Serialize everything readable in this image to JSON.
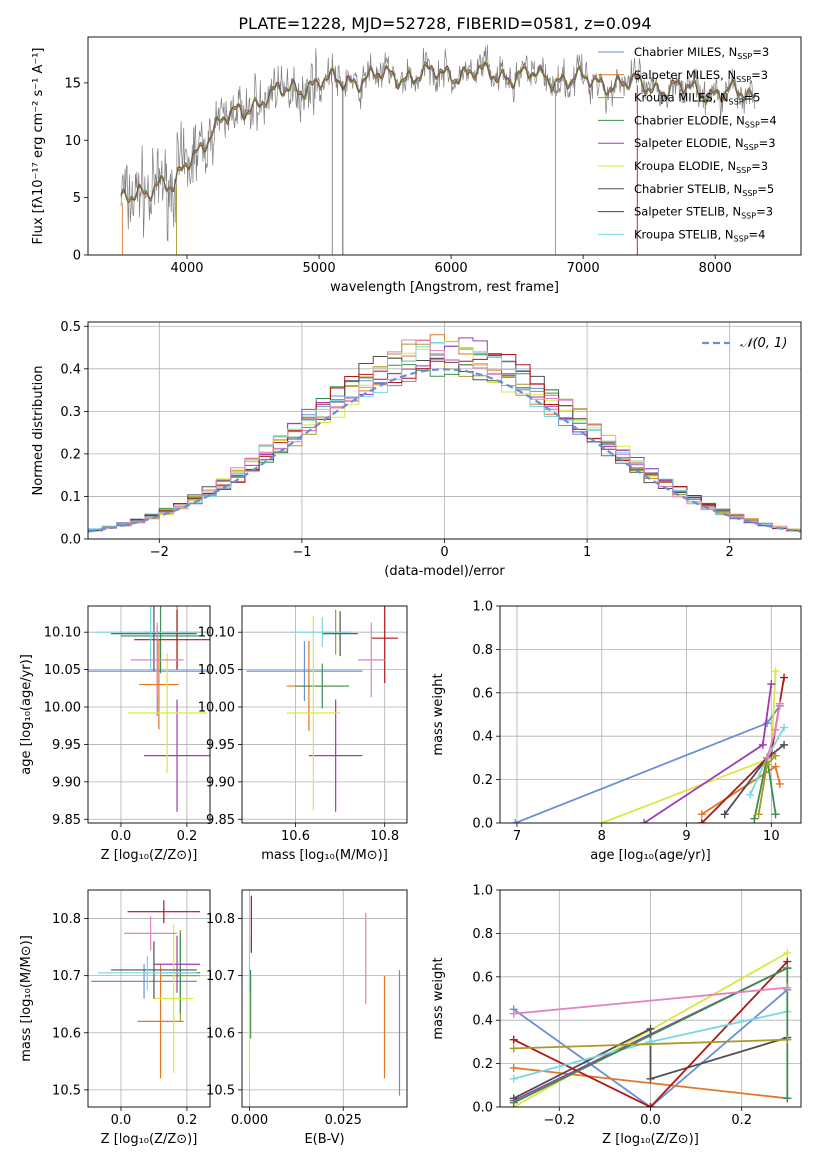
{
  "figure_title": "PLATE=1228, MJD=52728, FIBERID=0581, z=0.094",
  "colors": {
    "obs": "#7f7f7f",
    "Chabrier MILES": "#6a8fd6",
    "Salpeter MILES": "#e27727",
    "Kroupa MILES": "#a89a25",
    "Chabrier ELODIE": "#3b8e4f",
    "Salpeter ELODIE": "#a23ab4",
    "Kroupa ELODIE": "#d9e83f",
    "Chabrier STELIB": "#4f4f4f",
    "Salpeter STELIB": "#b01818",
    "Kroupa STELIB": "#78d8e2",
    "Pink": "#e282bf",
    "grid": "#b0b0b0"
  },
  "chart_data": [
    {
      "id": "spectrum",
      "type": "line",
      "title": "PLATE=1228, MJD=52728, FIBERID=0581, z=0.094",
      "xlabel": "wavelength [Angstrom, rest frame]",
      "ylabel": "Flux [fλ10⁻¹⁷ erg cm⁻² s⁻¹ A⁻¹]",
      "xlim": [
        3250,
        8650
      ],
      "ylim": [
        0,
        19
      ],
      "xticks": [
        4000,
        5000,
        6000,
        7000,
        8000
      ],
      "yticks": [
        0,
        5,
        10,
        15
      ],
      "grid": false,
      "legend_position": "right",
      "legend": [
        {
          "name": "Chabrier MILES, N_SSP=3",
          "label": "Chabrier MILES, N",
          "sub": "SSP",
          "n": "=3",
          "color_key": "Chabrier MILES"
        },
        {
          "name": "Salpeter MILES, N_SSP=3",
          "label": "Salpeter MILES, N",
          "sub": "SSP",
          "n": "=3",
          "color_key": "Salpeter MILES"
        },
        {
          "name": "Kroupa MILES, N_SSP=5",
          "label": "Kroupa MILES, N",
          "sub": "SSP",
          "n": "=5",
          "color_key": "Kroupa MILES"
        },
        {
          "name": "Chabrier ELODIE, N_SSP=4",
          "label": "Chabrier ELODIE, N",
          "sub": "SSP",
          "n": "=4",
          "color_key": "Chabrier ELODIE"
        },
        {
          "name": "Salpeter ELODIE, N_SSP=3",
          "label": "Salpeter ELODIE, N",
          "sub": "SSP",
          "n": "=3",
          "color_key": "Salpeter ELODIE"
        },
        {
          "name": "Kroupa ELODIE, N_SSP=3",
          "label": "Kroupa ELODIE, N",
          "sub": "SSP",
          "n": "=3",
          "color_key": "Kroupa ELODIE"
        },
        {
          "name": "Chabrier STELIB, N_SSP=5",
          "label": "Chabrier STELIB, N",
          "sub": "SSP",
          "n": "=5",
          "color_key": "Chabrier STELIB"
        },
        {
          "name": "Salpeter STELIB, N_SSP=3",
          "label": "Salpeter STELIB, N",
          "sub": "SSP",
          "n": "=3",
          "color_key": "Salpeter STELIB"
        },
        {
          "name": "Kroupa STELIB, N_SSP=4",
          "label": "Kroupa STELIB, N",
          "sub": "SSP",
          "n": "=4",
          "color_key": "Kroupa STELIB"
        }
      ],
      "continuum": [
        [
          3500,
          4.5
        ],
        [
          3600,
          5.0
        ],
        [
          3700,
          5.8
        ],
        [
          3800,
          6.5
        ],
        [
          3900,
          5.6
        ],
        [
          4000,
          8.0
        ],
        [
          4100,
          9.5
        ],
        [
          4200,
          11.0
        ],
        [
          4300,
          11.8
        ],
        [
          4400,
          12.5
        ],
        [
          4500,
          13.2
        ],
        [
          4600,
          13.7
        ],
        [
          4700,
          14.1
        ],
        [
          4800,
          14.5
        ],
        [
          4900,
          14.8
        ],
        [
          5000,
          15.0
        ],
        [
          5200,
          15.2
        ],
        [
          5400,
          15.5
        ],
        [
          5600,
          15.6
        ],
        [
          5800,
          15.7
        ],
        [
          6000,
          15.9
        ],
        [
          6200,
          15.8
        ],
        [
          6400,
          15.7
        ],
        [
          6600,
          15.6
        ],
        [
          6800,
          15.4
        ],
        [
          7000,
          15.2
        ],
        [
          7200,
          15.0
        ],
        [
          7400,
          14.8
        ],
        [
          7600,
          14.6
        ],
        [
          7800,
          14.4
        ],
        [
          8000,
          14.2
        ],
        [
          8200,
          14.0
        ],
        [
          8300,
          13.9
        ]
      ],
      "spikes": [
        [
          5100,
          0,
          "obs"
        ],
        [
          5180,
          0,
          "Chabrier STELIB"
        ],
        [
          6790,
          0,
          "Kroupa MILES"
        ],
        [
          7410,
          0,
          "Salpeter STELIB"
        ],
        [
          3510,
          0,
          "Salpeter MILES"
        ],
        [
          3920,
          0,
          "Kroupa MILES"
        ]
      ]
    },
    {
      "id": "residuals",
      "type": "line",
      "xlabel": "(data-model)/error",
      "ylabel": "Normed distribution",
      "xlim": [
        -2.5,
        2.5
      ],
      "ylim": [
        0,
        0.51
      ],
      "xticks": [
        -2,
        -1,
        0,
        1,
        2
      ],
      "yticks": [
        0.0,
        0.1,
        0.2,
        0.3,
        0.4,
        0.5
      ],
      "grid": true,
      "legend_position": "top-right",
      "reference_curve": "𝒩(0, 1)",
      "bin_width": 0.1
    },
    {
      "id": "age_vs_Z",
      "type": "scatter",
      "xlabel": "Z [log₁₀(Z/Z⊙)]",
      "ylabel": "age  [log₁₀(age/yr)]",
      "xlim": [
        -0.1,
        0.27
      ],
      "ylim": [
        9.845,
        10.135
      ],
      "xticks": [
        0.0,
        0.2
      ],
      "yticks": [
        9.85,
        9.9,
        9.95,
        10.0,
        10.05,
        10.1
      ],
      "grid": true,
      "points": [
        {
          "k": "Chabrier MILES",
          "x": 0.11,
          "xe": 0.23,
          "y": 10.048,
          "ye": 0.06
        },
        {
          "k": "Salpeter MILES",
          "x": 0.115,
          "xe": 0.06,
          "y": 10.03,
          "ye": 0.06
        },
        {
          "k": "Kroupa MILES",
          "x": 0.17,
          "xe": 0.1,
          "y": 10.1,
          "ye": 0.05
        },
        {
          "k": "Chabrier ELODIE",
          "x": 0.12,
          "xe": 0.12,
          "y": 10.095,
          "ye": 0.05
        },
        {
          "k": "Salpeter ELODIE",
          "x": 0.17,
          "xe": 0.1,
          "y": 9.935,
          "ye": 0.075
        },
        {
          "k": "Kroupa ELODIE",
          "x": 0.14,
          "xe": 0.12,
          "y": 9.992,
          "ye": 0.08
        },
        {
          "k": "Chabrier STELIB",
          "x": 0.1,
          "xe": 0.13,
          "y": 10.098,
          "ye": 0.05
        },
        {
          "k": "Salpeter STELIB",
          "x": 0.17,
          "xe": 0.13,
          "y": 10.09,
          "ye": 0.04
        },
        {
          "k": "Kroupa STELIB",
          "x": 0.09,
          "xe": 0.17,
          "y": 10.1,
          "ye": 0.05
        },
        {
          "k": "Pink",
          "x": 0.11,
          "xe": 0.08,
          "y": 10.063,
          "ye": 0.05
        }
      ]
    },
    {
      "id": "age_vs_mass",
      "type": "scatter",
      "xlabel": "mass [log₁₀(M/M⊙)]",
      "ylabel": "",
      "xlim": [
        10.48,
        10.85
      ],
      "ylim": [
        9.845,
        10.135
      ],
      "xticks": [
        10.6,
        10.8
      ],
      "yticks": [
        9.85,
        9.9,
        9.95,
        10.0,
        10.05,
        10.1
      ],
      "grid": true,
      "points": [
        {
          "k": "Chabrier MILES",
          "x": 10.62,
          "xe": 0.13,
          "y": 10.048,
          "ye": 0.04
        },
        {
          "k": "Salpeter MILES",
          "x": 10.63,
          "xe": 0.05,
          "y": 10.028,
          "ye": 0.06
        },
        {
          "k": "Kroupa MILES",
          "x": 10.69,
          "xe": 0.03,
          "y": 10.1,
          "ye": 0.03
        },
        {
          "k": "Chabrier ELODIE",
          "x": 10.66,
          "xe": 0.06,
          "y": 10.028,
          "ye": 0.03
        },
        {
          "k": "Salpeter ELODIE",
          "x": 10.69,
          "xe": 0.06,
          "y": 9.935,
          "ye": 0.075
        },
        {
          "k": "Kroupa ELODIE",
          "x": 10.64,
          "xe": 0.06,
          "y": 9.992,
          "ye": 0.13
        },
        {
          "k": "Chabrier STELIB",
          "x": 10.7,
          "xe": 0.04,
          "y": 10.098,
          "ye": 0.03
        },
        {
          "k": "Salpeter STELIB",
          "x": 10.8,
          "xe": 0.03,
          "y": 10.092,
          "ye": 0.06
        },
        {
          "k": "Kroupa STELIB",
          "x": 10.66,
          "xe": 0.07,
          "y": 10.1,
          "ye": 0.02
        },
        {
          "k": "Pink",
          "x": 10.77,
          "xe": 0.03,
          "y": 10.063,
          "ye": 0.05
        }
      ]
    },
    {
      "id": "weight_vs_age",
      "type": "line",
      "xlabel": "age  [log₁₀(age/yr)]",
      "ylabel": "mass weight",
      "xlim": [
        6.8,
        10.35
      ],
      "ylim": [
        0,
        1
      ],
      "xticks": [
        7,
        8,
        9,
        10
      ],
      "yticks": [
        0.0,
        0.2,
        0.4,
        0.6,
        0.8,
        1.0
      ],
      "grid": true,
      "series": [
        {
          "k": "Chabrier MILES",
          "x": [
            6.98,
            9.95,
            10.1
          ],
          "y": [
            0.0,
            0.46,
            0.54
          ]
        },
        {
          "k": "Salpeter MILES",
          "x": [
            9.18,
            10.05,
            10.1
          ],
          "y": [
            0.04,
            0.26,
            0.18
          ]
        },
        {
          "k": "Kroupa ELODIE",
          "x": [
            8.0,
            10.0,
            10.05
          ],
          "y": [
            0.0,
            0.3,
            0.7
          ]
        },
        {
          "k": "Salpeter ELODIE",
          "x": [
            8.5,
            9.9,
            10.0
          ],
          "y": [
            0.0,
            0.36,
            0.64
          ]
        },
        {
          "k": "Chabrier STELIB",
          "x": [
            9.45,
            9.95,
            10.15
          ],
          "y": [
            0.04,
            0.3,
            0.36
          ]
        },
        {
          "k": "Salpeter STELIB",
          "x": [
            9.18,
            10.0,
            10.15
          ],
          "y": [
            0.0,
            0.32,
            0.67
          ]
        },
        {
          "k": "Kroupa STELIB",
          "x": [
            9.75,
            9.95,
            10.15
          ],
          "y": [
            0.13,
            0.3,
            0.44
          ]
        },
        {
          "k": "Chabrier ELODIE",
          "x": [
            9.8,
            9.95,
            10.05
          ],
          "y": [
            0.02,
            0.3,
            0.04
          ]
        },
        {
          "k": "Kroupa MILES",
          "x": [
            9.85,
            9.95,
            10.05
          ],
          "y": [
            0.04,
            0.27,
            0.31
          ]
        },
        {
          "k": "Pink",
          "x": [
            9.95,
            10.05,
            10.1
          ],
          "y": [
            0.3,
            0.43,
            0.55
          ]
        }
      ]
    },
    {
      "id": "mass_vs_Z",
      "type": "scatter",
      "xlabel": "Z [log₁₀(Z/Z⊙)]",
      "ylabel": "mass [log₁₀(M/M⊙)]",
      "xlim": [
        -0.1,
        0.27
      ],
      "ylim": [
        10.47,
        10.85
      ],
      "xticks": [
        0.0,
        0.2
      ],
      "yticks": [
        10.5,
        10.6,
        10.7,
        10.8
      ],
      "grid": true,
      "points": [
        {
          "k": "Chabrier MILES",
          "x": 0.07,
          "xe": 0.16,
          "y": 10.69,
          "ye": 0.03
        },
        {
          "k": "Salpeter MILES",
          "x": 0.12,
          "xe": 0.07,
          "y": 10.62,
          "ye": 0.1
        },
        {
          "k": "Kroupa MILES",
          "x": 0.18,
          "xe": 0.06,
          "y": 10.7,
          "ye": 0.08
        },
        {
          "k": "Chabrier ELODIE",
          "x": 0.18,
          "xe": 0.06,
          "y": 10.705,
          "ye": 0.07
        },
        {
          "k": "Salpeter ELODIE",
          "x": 0.17,
          "xe": 0.07,
          "y": 10.72,
          "ye": 0.05
        },
        {
          "k": "Kroupa ELODIE",
          "x": 0.16,
          "xe": 0.06,
          "y": 10.66,
          "ye": 0.13
        },
        {
          "k": "Chabrier STELIB",
          "x": 0.1,
          "xe": 0.13,
          "y": 10.71,
          "ye": 0.05
        },
        {
          "k": "Salpeter STELIB",
          "x": 0.13,
          "xe": 0.11,
          "y": 10.812,
          "ye": 0.02
        },
        {
          "k": "Kroupa STELIB",
          "x": 0.08,
          "xe": 0.15,
          "y": 10.705,
          "ye": 0.03
        },
        {
          "k": "Pink",
          "x": 0.09,
          "xe": 0.08,
          "y": 10.774,
          "ye": 0.03
        }
      ]
    },
    {
      "id": "mass_vs_ebv",
      "type": "scatter",
      "xlabel": "E(B-V)",
      "ylabel": "",
      "xlim": [
        -0.002,
        0.042
      ],
      "ylim": [
        10.47,
        10.85
      ],
      "xticks": [
        0.0,
        0.025
      ],
      "yticks": [
        10.5,
        10.6,
        10.7,
        10.8
      ],
      "grid": true,
      "points": [
        {
          "k": "Salpeter STELIB",
          "x": 0.0005,
          "xe": 0.0,
          "y": 10.79,
          "ye": 0.05
        },
        {
          "k": "Kroupa STELIB",
          "x": 0.0,
          "xe": 0.0,
          "y": 10.7,
          "ye": 0.07
        },
        {
          "k": "Chabrier ELODIE",
          "x": 0.0003,
          "xe": 0.0,
          "y": 10.65,
          "ye": 0.06
        },
        {
          "k": "Kroupa ELODIE",
          "x": 0.0,
          "xe": 0.0,
          "y": 10.6,
          "ye": 0.07
        },
        {
          "k": "Pink",
          "x": 0.031,
          "xe": 0.0,
          "y": 10.73,
          "ye": 0.08
        },
        {
          "k": "Salpeter MILES",
          "x": 0.036,
          "xe": 0.0,
          "y": 10.61,
          "ye": 0.09
        },
        {
          "k": "Chabrier MILES",
          "x": 0.04,
          "xe": 0.0,
          "y": 10.6,
          "ye": 0.11
        }
      ]
    },
    {
      "id": "weight_vs_Z",
      "type": "line",
      "xlabel": "Z [log₁₀(Z/Z⊙)]",
      "ylabel": "mass weight",
      "xlim": [
        -0.33,
        0.33
      ],
      "ylim": [
        0,
        1
      ],
      "xticks": [
        -0.2,
        0.0,
        0.2
      ],
      "yticks": [
        0.0,
        0.2,
        0.4,
        0.6,
        0.8,
        1.0
      ],
      "grid": true,
      "series": [
        {
          "k": "Chabrier MILES",
          "x": [
            -0.3,
            0.0,
            0.3
          ],
          "y": [
            0.45,
            0.0,
            0.54
          ]
        },
        {
          "k": "Salpeter MILES",
          "x": [
            -0.3,
            0.3
          ],
          "y": [
            0.18,
            0.04
          ]
        },
        {
          "k": "Kroupa ELODIE",
          "x": [
            -0.3,
            0.3
          ],
          "y": [
            0.0,
            0.71
          ]
        },
        {
          "k": "Salpeter ELODIE",
          "x": [
            -0.3,
            0.3
          ],
          "y": [
            0.03,
            0.64
          ]
        },
        {
          "k": "Chabrier STELIB",
          "x": [
            -0.3,
            0.0,
            0.0,
            0.3
          ],
          "y": [
            0.04,
            0.36,
            0.13,
            0.32
          ]
        },
        {
          "k": "Salpeter STELIB",
          "x": [
            -0.3,
            0.0,
            0.3
          ],
          "y": [
            0.31,
            0.0,
            0.67
          ]
        },
        {
          "k": "Kroupa STELIB",
          "x": [
            -0.3,
            0.0,
            0.3
          ],
          "y": [
            0.13,
            0.3,
            0.44
          ]
        },
        {
          "k": "Chabrier ELODIE",
          "x": [
            -0.3,
            0.3,
            0.3
          ],
          "y": [
            0.02,
            0.64,
            0.04
          ]
        },
        {
          "k": "Kroupa MILES",
          "x": [
            -0.3,
            0.3
          ],
          "y": [
            0.27,
            0.31
          ]
        },
        {
          "k": "Pink",
          "x": [
            -0.3,
            0.3
          ],
          "y": [
            0.43,
            0.55
          ]
        }
      ]
    }
  ]
}
